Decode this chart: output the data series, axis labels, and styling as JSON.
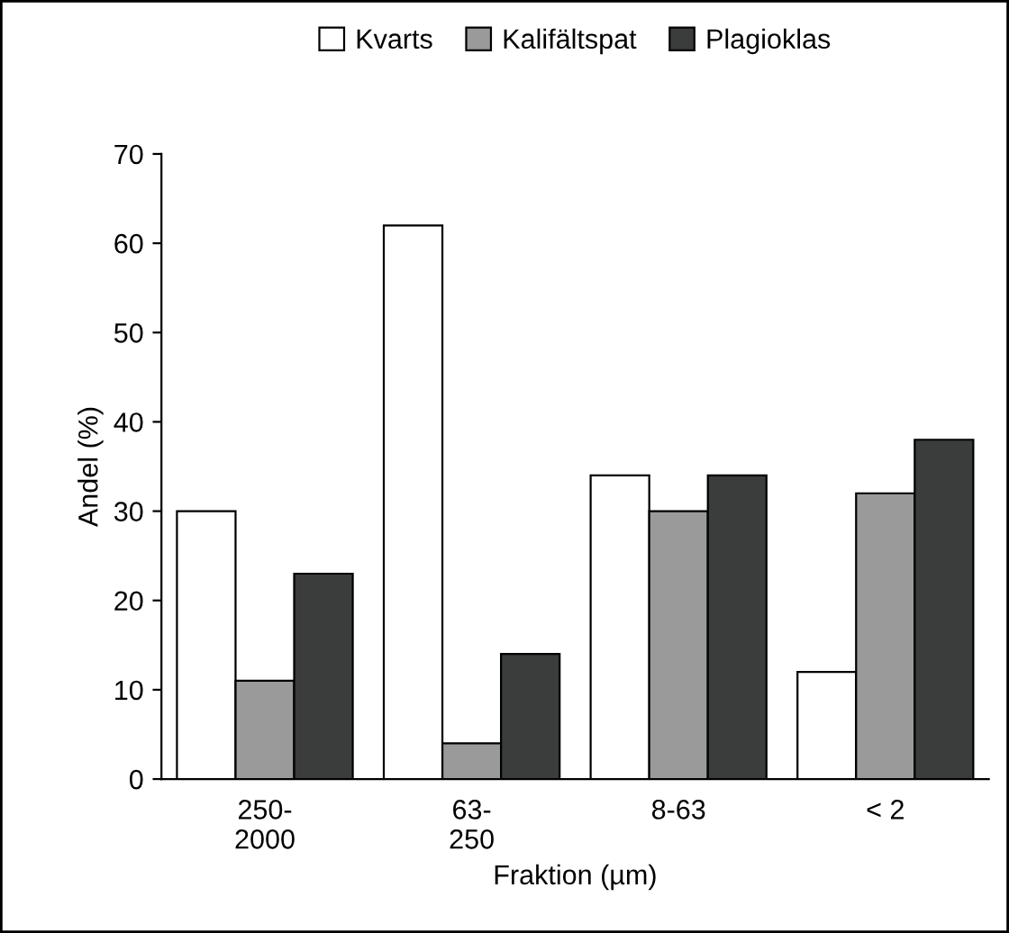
{
  "chart_data": {
    "type": "bar",
    "xlabel": "Fraktion (µm)",
    "ylabel": "Andel (%)",
    "categories": [
      "250-\n2000",
      "63-\n250",
      "8-63",
      "< 2"
    ],
    "series": [
      {
        "name": "Kvarts",
        "color": "#ffffff",
        "values": [
          30,
          62,
          34,
          12
        ]
      },
      {
        "name": "Kalifältspat",
        "color": "#9a9a9a",
        "values": [
          11,
          4,
          30,
          32
        ]
      },
      {
        "name": "Plagioklas",
        "color": "#3a3d3b",
        "values": [
          23,
          14,
          34,
          38
        ]
      }
    ],
    "ylim": [
      0,
      70
    ],
    "yticks": [
      0,
      10,
      20,
      30,
      40,
      50,
      60,
      70
    ],
    "grid": false,
    "legend": "top"
  }
}
